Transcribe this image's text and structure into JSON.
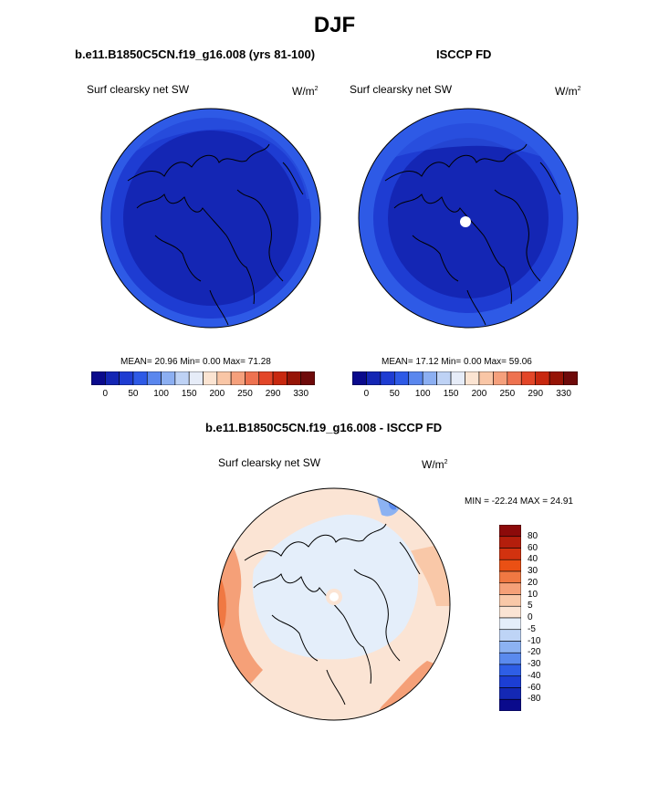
{
  "title": "DJF",
  "panels": [
    {
      "title": "b.e11.B1850C5CN.f19_g16.008 (yrs 81-100)",
      "variable": "Surf clearsky net SW",
      "units_base": "W/m",
      "units_exp": "2",
      "stats": "MEAN= 20.96  Min=  0.00  Max= 71.28"
    },
    {
      "title": "ISCCP FD",
      "variable": "Surf clearsky net SW",
      "units_base": "W/m",
      "units_exp": "2",
      "stats": "MEAN= 17.12  Min=  0.00  Max= 59.06"
    }
  ],
  "abs_colorbar": {
    "colors": [
      "#0a0a8c",
      "#1426b4",
      "#1e3cd2",
      "#2e5ae6",
      "#5a87ee",
      "#8caff2",
      "#bed2f5",
      "#e6ecf8",
      "#fbe4d2",
      "#f9c6a6",
      "#f5a07c",
      "#ee7250",
      "#e34628",
      "#c8280f",
      "#961406",
      "#6e0a0a"
    ],
    "tick_labels": [
      "0",
      "50",
      "100",
      "150",
      "200",
      "250",
      "290",
      "330"
    ]
  },
  "diff_panel": {
    "title": "b.e11.B1850C5CN.f19_g16.008 - ISCCP FD",
    "variable": "Surf clearsky net SW",
    "units_base": "W/m",
    "units_exp": "2",
    "stats": "MIN = -22.24 MAX =  24.91"
  },
  "diff_colorbar": {
    "colors_top_to_bottom": [
      "#8c0a0a",
      "#b41e0c",
      "#d2320f",
      "#ea5014",
      "#f07842",
      "#f5a078",
      "#f9c8a8",
      "#fbe4d4",
      "#e4eefa",
      "#bed4f6",
      "#8cb2f2",
      "#5a8aee",
      "#2e5ee6",
      "#1c3ed4",
      "#1428b4",
      "#0a0a8c"
    ],
    "tick_labels": [
      "80",
      "60",
      "40",
      "30",
      "20",
      "10",
      "5",
      "0",
      "-5",
      "-10",
      "-20",
      "-30",
      "-40",
      "-60",
      "-80"
    ]
  }
}
